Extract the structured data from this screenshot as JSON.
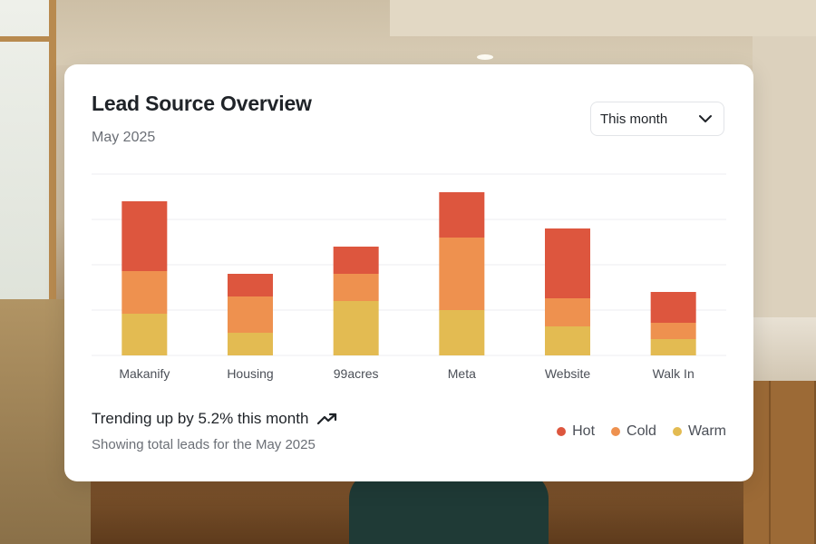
{
  "card": {
    "title": "Lead Source Overview",
    "subtitle": "May 2025",
    "period_select": {
      "value": "This month",
      "icon": "chevron-down-icon"
    }
  },
  "trend": {
    "text": "Trending up by 5.2% this month",
    "icon": "trending-up-icon",
    "footnote": "Showing total leads for the May 2025"
  },
  "legend": [
    {
      "label": "Hot",
      "color": "#dd563e"
    },
    {
      "label": "Cold",
      "color": "#ee914f"
    },
    {
      "label": "Warm",
      "color": "#e3bb52"
    }
  ],
  "chart_data": {
    "type": "bar",
    "stacked": true,
    "categories": [
      "Makanify",
      "Housing",
      "99acres",
      "Meta",
      "Website",
      "Walk In"
    ],
    "series": [
      {
        "name": "Warm",
        "color": "#e3bb52",
        "values": [
          46,
          25,
          60,
          50,
          32,
          18
        ]
      },
      {
        "name": "Cold",
        "color": "#ee914f",
        "values": [
          47,
          40,
          30,
          80,
          31,
          18
        ]
      },
      {
        "name": "Hot",
        "color": "#dd563e",
        "values": [
          77,
          25,
          30,
          50,
          77,
          34
        ]
      }
    ],
    "ylim": [
      0,
      200
    ],
    "grid": true,
    "legend_position": "bottom-right"
  }
}
